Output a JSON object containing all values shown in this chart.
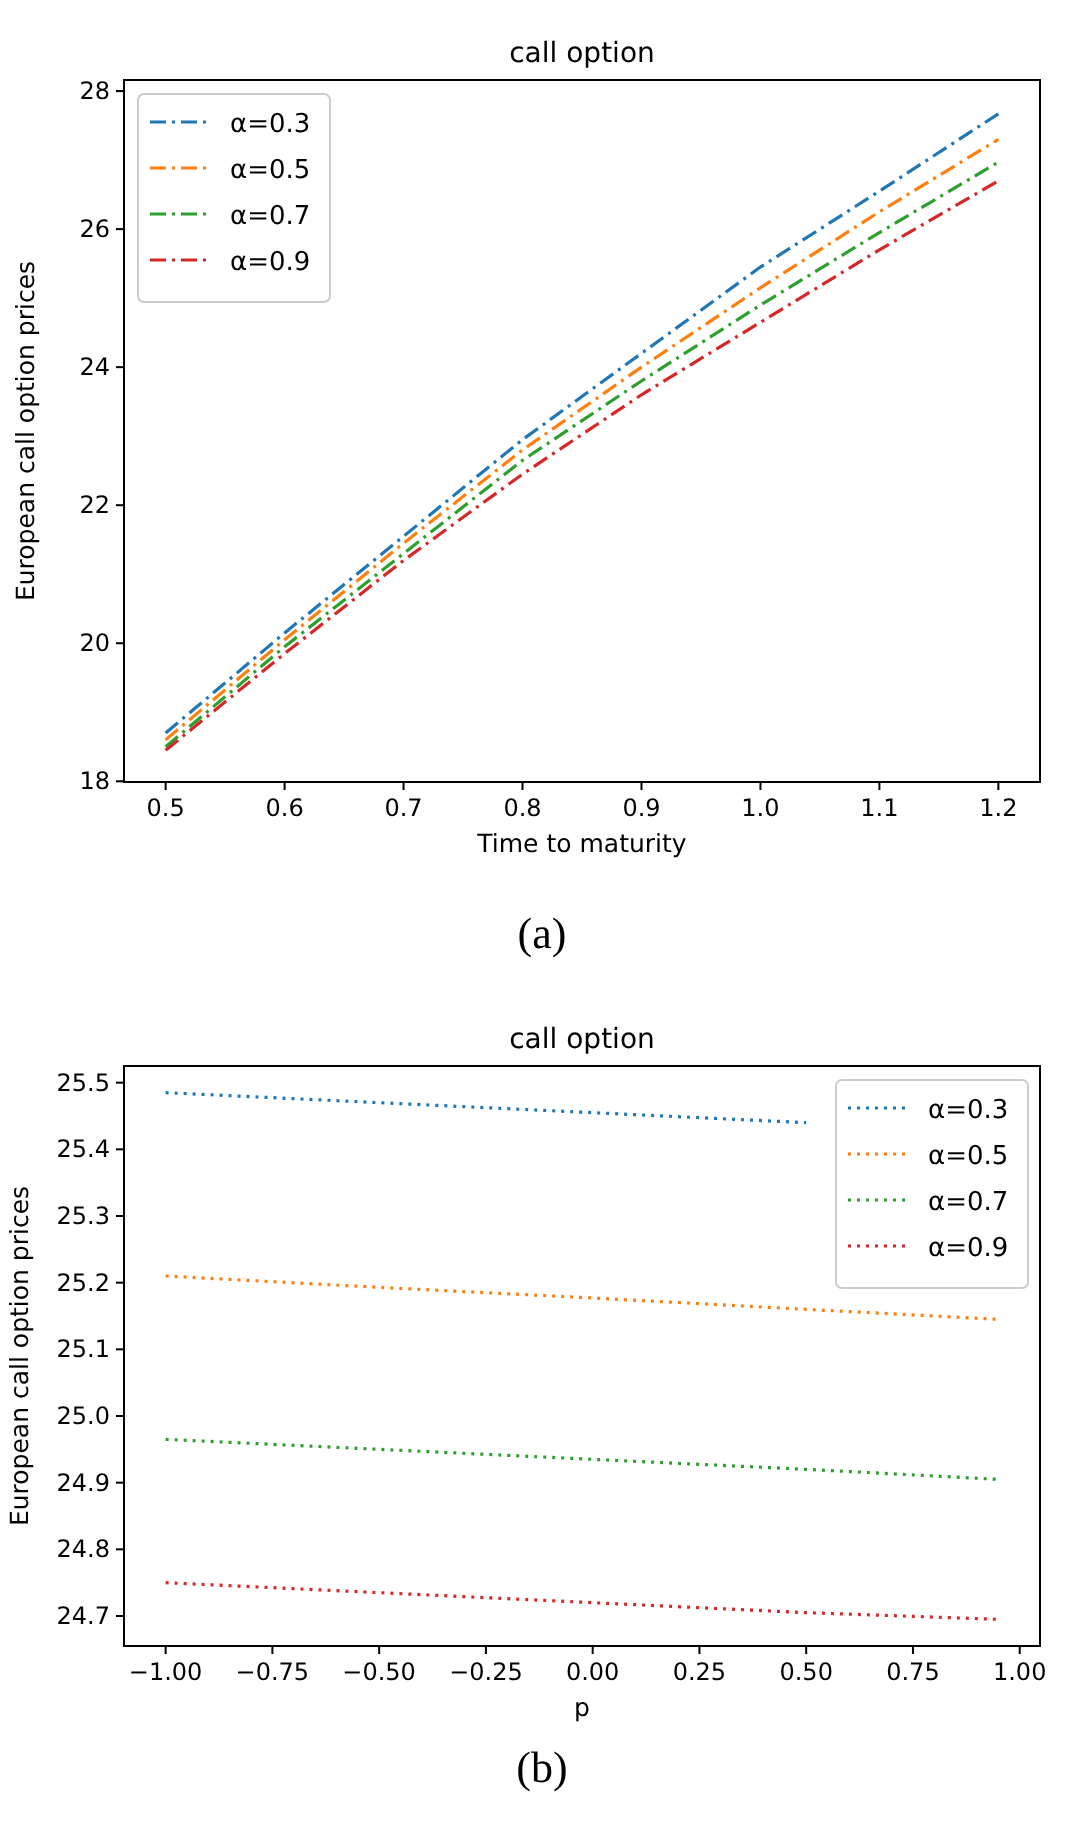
{
  "chart_data": [
    {
      "type": "line",
      "title": "call option",
      "xlabel": "Time to maturity",
      "ylabel": "European call option prices",
      "annotations": [
        "(a)"
      ],
      "x": [
        0.5,
        0.6,
        0.7,
        0.8,
        0.9,
        1.0,
        1.1,
        1.2
      ],
      "xlim": [
        0.465,
        1.235
      ],
      "xticks": [
        {
          "value": 0.5,
          "label": "0.5"
        },
        {
          "value": 0.6,
          "label": "0.6"
        },
        {
          "value": 0.7,
          "label": "0.7"
        },
        {
          "value": 0.8,
          "label": "0.8"
        },
        {
          "value": 0.9,
          "label": "0.9"
        },
        {
          "value": 1.0,
          "label": "1.0"
        },
        {
          "value": 1.1,
          "label": "1.1"
        },
        {
          "value": 1.2,
          "label": "1.2"
        }
      ],
      "ylim": [
        17.99,
        28.16
      ],
      "yticks": [
        18,
        20,
        22,
        24,
        26,
        28
      ],
      "legend": "top left",
      "line_style": "dashdot",
      "grid": false,
      "series": [
        {
          "name": "α=0.3",
          "color": "#1f77b4",
          "values": [
            18.7,
            20.15,
            21.55,
            22.95,
            24.2,
            25.45,
            26.55,
            27.67
          ]
        },
        {
          "name": "α=0.5",
          "color": "#ff7f0e",
          "values": [
            18.6,
            20.05,
            21.45,
            22.8,
            24.0,
            25.15,
            26.25,
            27.3
          ]
        },
        {
          "name": "α=0.7",
          "color": "#2ca02c",
          "values": [
            18.5,
            19.95,
            21.3,
            22.65,
            23.8,
            24.9,
            25.95,
            26.97
          ]
        },
        {
          "name": "α=0.9",
          "color": "#d62728",
          "values": [
            18.45,
            19.85,
            21.2,
            22.45,
            23.6,
            24.65,
            25.7,
            26.7
          ]
        }
      ]
    },
    {
      "type": "line",
      "title": "call option",
      "xlabel": "p",
      "ylabel": "European call option prices",
      "annotations": [
        "(b)"
      ],
      "x": [
        -1.0,
        -0.5,
        0.0,
        0.5,
        0.95
      ],
      "xlim": [
        -1.0975,
        1.0475
      ],
      "xticks": [
        {
          "value": -1,
          "label": "−1.00"
        },
        {
          "value": -0.75,
          "label": "−0.75"
        },
        {
          "value": -0.5,
          "label": "−0.50"
        },
        {
          "value": -0.25,
          "label": "−0.25"
        },
        {
          "value": 0,
          "label": "0.00"
        },
        {
          "value": 0.25,
          "label": "0.25"
        },
        {
          "value": 0.5,
          "label": "0.50"
        },
        {
          "value": 0.75,
          "label": "0.75"
        },
        {
          "value": 1,
          "label": "1.00"
        }
      ],
      "ylim": [
        24.655,
        25.525
      ],
      "yticks": [
        {
          "value": 24.7,
          "label": "24.7"
        },
        {
          "value": 24.8,
          "label": "24.8"
        },
        {
          "value": 24.9,
          "label": "24.9"
        },
        {
          "value": 25.0,
          "label": "25.0"
        },
        {
          "value": 25.1,
          "label": "25.1"
        },
        {
          "value": 25.2,
          "label": "25.2"
        },
        {
          "value": 25.3,
          "label": "25.3"
        },
        {
          "value": 25.4,
          "label": "25.4"
        },
        {
          "value": 25.5,
          "label": "25.5"
        }
      ],
      "legend": "top right",
      "line_style": "dotted",
      "grid": false,
      "series": [
        {
          "name": "α=0.3",
          "color": "#1f77b4",
          "values": [
            25.485,
            25.47,
            25.455,
            25.44,
            null
          ]
        },
        {
          "name": "α=0.5",
          "color": "#ff7f0e",
          "values": [
            25.21,
            25.193,
            25.177,
            25.16,
            25.145
          ]
        },
        {
          "name": "α=0.7",
          "color": "#2ca02c",
          "values": [
            24.965,
            24.95,
            24.935,
            24.92,
            24.905
          ]
        },
        {
          "name": "α=0.9",
          "color": "#d62728",
          "values": [
            24.75,
            24.735,
            24.72,
            24.705,
            24.695
          ]
        }
      ]
    }
  ]
}
